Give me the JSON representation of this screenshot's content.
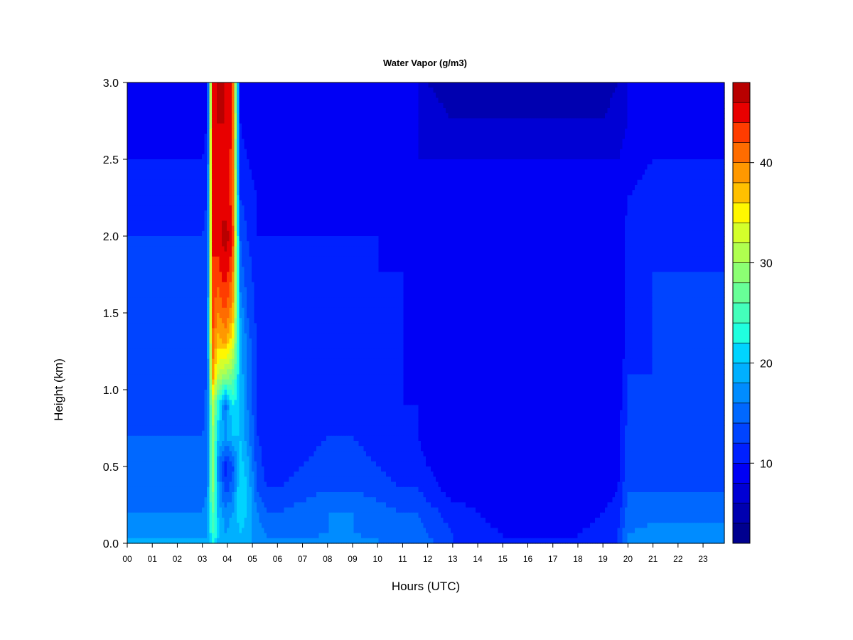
{
  "chart_data": {
    "type": "heatmap",
    "title": "Water Vapor (g/m3)",
    "xlabel": "Hours (UTC)",
    "ylabel": "Height (km)",
    "xlim": [
      0,
      23.85
    ],
    "ylim": [
      0,
      3.0
    ],
    "x_ticks": [
      {
        "value": 0,
        "label": "00"
      },
      {
        "value": 1,
        "label": "01"
      },
      {
        "value": 2,
        "label": "02"
      },
      {
        "value": 3,
        "label": "03"
      },
      {
        "value": 4,
        "label": "04"
      },
      {
        "value": 5,
        "label": "05"
      },
      {
        "value": 6,
        "label": "06"
      },
      {
        "value": 7,
        "label": "07"
      },
      {
        "value": 8,
        "label": "08"
      },
      {
        "value": 9,
        "label": "09"
      },
      {
        "value": 10,
        "label": "10"
      },
      {
        "value": 11,
        "label": "11"
      },
      {
        "value": 12,
        "label": "12"
      },
      {
        "value": 13,
        "label": "13"
      },
      {
        "value": 14,
        "label": "14"
      },
      {
        "value": 15,
        "label": "15"
      },
      {
        "value": 16,
        "label": "16"
      },
      {
        "value": 17,
        "label": "17"
      },
      {
        "value": 18,
        "label": "18"
      },
      {
        "value": 19,
        "label": "19"
      },
      {
        "value": 20,
        "label": "20"
      },
      {
        "value": 21,
        "label": "21"
      },
      {
        "value": 22,
        "label": "22"
      },
      {
        "value": 23,
        "label": "23"
      }
    ],
    "y_ticks": [
      {
        "value": 0.0,
        "label": "0.0"
      },
      {
        "value": 0.5,
        "label": "0.5"
      },
      {
        "value": 1.0,
        "label": "1.0"
      },
      {
        "value": 1.5,
        "label": "1.5"
      },
      {
        "value": 2.0,
        "label": "2.0"
      },
      {
        "value": 2.5,
        "label": "2.5"
      },
      {
        "value": 3.0,
        "label": "3.0"
      }
    ],
    "colorbar": {
      "range": [
        2,
        48
      ],
      "levels": [
        2,
        4,
        6,
        8,
        10,
        12,
        14,
        16,
        18,
        20,
        22,
        24,
        26,
        28,
        30,
        32,
        34,
        36,
        38,
        40,
        42,
        44,
        46,
        48
      ],
      "colors": [
        "#00008F",
        "#0000B0",
        "#0000D4",
        "#0000F5",
        "#0020FF",
        "#0044FF",
        "#0068FF",
        "#008CFF",
        "#00B0FF",
        "#00D4FF",
        "#20FFDF",
        "#44FFBB",
        "#68FF97",
        "#8CFF73",
        "#B0FF4F",
        "#D4FF2B",
        "#FFF700",
        "#FFC000",
        "#FF9800",
        "#FF6C00",
        "#FF3C00",
        "#E80000",
        "#B80000",
        "#8A0000"
      ],
      "ticks": [
        {
          "value": 10,
          "label": "10"
        },
        {
          "value": 20,
          "label": "20"
        },
        {
          "value": 30,
          "label": "30"
        },
        {
          "value": 40,
          "label": "40"
        }
      ]
    },
    "field": {
      "description_units": "water vapor density in g/m3 as a function of hour (x) and height km (y)",
      "x": [
        0,
        1,
        2,
        3,
        3.2,
        3.4,
        3.6,
        3.9,
        4.2,
        4.5,
        4.8,
        5.2,
        5.6,
        6,
        7,
        8,
        9,
        10,
        11,
        11.6,
        12,
        13,
        14,
        15,
        16,
        17,
        18,
        19,
        19.6,
        20,
        21,
        22,
        23,
        23.85
      ],
      "y": [
        0.0,
        0.05,
        0.2,
        0.35,
        0.5,
        0.7,
        0.9,
        1.1,
        1.3,
        1.5,
        1.75,
        2.0,
        2.25,
        2.5,
        2.75,
        3.0
      ],
      "z": [
        [
          19,
          19,
          19,
          19,
          18,
          22,
          19,
          19,
          19,
          19,
          18,
          18,
          17,
          17,
          16,
          16,
          17,
          16,
          16,
          15,
          15,
          12,
          11,
          11,
          10,
          10,
          11,
          11,
          12,
          17,
          18,
          18,
          18,
          18
        ],
        [
          18,
          18,
          18,
          18,
          18,
          24,
          21,
          18,
          19,
          20,
          19,
          17,
          16,
          16,
          16,
          16,
          16,
          16,
          15,
          15,
          14,
          12,
          11,
          10,
          10,
          10,
          10,
          11,
          12,
          16,
          17,
          17,
          17,
          17
        ],
        [
          16,
          16,
          16,
          16,
          17,
          27,
          20,
          17,
          18,
          21,
          20,
          16,
          14,
          14,
          15,
          16,
          16,
          15,
          14,
          14,
          13,
          11,
          10,
          9,
          9,
          9,
          9,
          10,
          11,
          15,
          15,
          15,
          15,
          15
        ],
        [
          15,
          15,
          15,
          15,
          16,
          30,
          19,
          13,
          15,
          22,
          20,
          14,
          12,
          12,
          13,
          14,
          14,
          13,
          12,
          12,
          11,
          9,
          9,
          9,
          8,
          9,
          8,
          9,
          10,
          14,
          14,
          14,
          14,
          14
        ],
        [
          14,
          14,
          14,
          14,
          15,
          31,
          17,
          11,
          13,
          21,
          19,
          13,
          11,
          11,
          12,
          13,
          13,
          12,
          11,
          11,
          10,
          9,
          8,
          8,
          8,
          8,
          8,
          9,
          9,
          13,
          13,
          13,
          13,
          13
        ],
        [
          14,
          14,
          14,
          14,
          15,
          31,
          21,
          18,
          20,
          20,
          17,
          12,
          11,
          11,
          11,
          12,
          12,
          11,
          10,
          10,
          9,
          8,
          8,
          8,
          8,
          8,
          8,
          8,
          9,
          13,
          13,
          13,
          13,
          13
        ],
        [
          14,
          13,
          13,
          13,
          15,
          32,
          24,
          15,
          22,
          20,
          16,
          12,
          10,
          10,
          10,
          11,
          11,
          11,
          10,
          10,
          9,
          8,
          8,
          8,
          8,
          8,
          8,
          8,
          9,
          12,
          13,
          13,
          13,
          13
        ],
        [
          13,
          13,
          13,
          13,
          14,
          40,
          32,
          30,
          28,
          20,
          15,
          12,
          10,
          10,
          10,
          10,
          11,
          10,
          10,
          9,
          8,
          8,
          8,
          8,
          8,
          8,
          8,
          8,
          8,
          12,
          12,
          12,
          12,
          12
        ],
        [
          13,
          13,
          13,
          13,
          14,
          42,
          37,
          38,
          34,
          20,
          15,
          12,
          10,
          10,
          10,
          10,
          10,
          10,
          10,
          9,
          8,
          8,
          8,
          8,
          8,
          8,
          8,
          8,
          8,
          11,
          12,
          12,
          12,
          12
        ],
        [
          13,
          13,
          12,
          12,
          14,
          43,
          40,
          42,
          39,
          18,
          14,
          11,
          10,
          10,
          10,
          10,
          10,
          10,
          10,
          9,
          8,
          8,
          8,
          8,
          8,
          8,
          8,
          8,
          8,
          11,
          12,
          12,
          12,
          12
        ],
        [
          13,
          12,
          12,
          12,
          13,
          44,
          43,
          45,
          42,
          15,
          13,
          11,
          10,
          10,
          10,
          10,
          10,
          10,
          10,
          8,
          8,
          8,
          8,
          8,
          8,
          8,
          8,
          8,
          8,
          11,
          12,
          12,
          12,
          12
        ],
        [
          12,
          12,
          12,
          12,
          13,
          44,
          45,
          47,
          45,
          14,
          12,
          10,
          10,
          10,
          10,
          10,
          10,
          10,
          9,
          8,
          8,
          8,
          8,
          8,
          8,
          8,
          8,
          8,
          8,
          11,
          11,
          11,
          11,
          11
        ],
        [
          12,
          11,
          11,
          11,
          12,
          44,
          45,
          45,
          43,
          12,
          11,
          10,
          9,
          9,
          9,
          9,
          9,
          9,
          9,
          8,
          8,
          8,
          8,
          8,
          8,
          8,
          8,
          8,
          8,
          10,
          11,
          11,
          11,
          11
        ],
        [
          10,
          10,
          10,
          10,
          11,
          44,
          45,
          46,
          43,
          11,
          10,
          9,
          8,
          8,
          8,
          8,
          8,
          8,
          8,
          8,
          8,
          8,
          8,
          8,
          8,
          8,
          8,
          8,
          8,
          9,
          10,
          10,
          10,
          10
        ],
        [
          9,
          9,
          9,
          9,
          10,
          44,
          46,
          46,
          44,
          10,
          9,
          9,
          8,
          8,
          8,
          8,
          8,
          8,
          8,
          8,
          7,
          6,
          6,
          6,
          6,
          6,
          6,
          6,
          7,
          8,
          9,
          9,
          9,
          9
        ],
        [
          8,
          8,
          8,
          8,
          9,
          44,
          46,
          46,
          44,
          9,
          8,
          8,
          8,
          8,
          8,
          8,
          8,
          8,
          8,
          8,
          6,
          5,
          5,
          5,
          5,
          5,
          5,
          5,
          6,
          8,
          8,
          8,
          8,
          8
        ]
      ]
    }
  }
}
